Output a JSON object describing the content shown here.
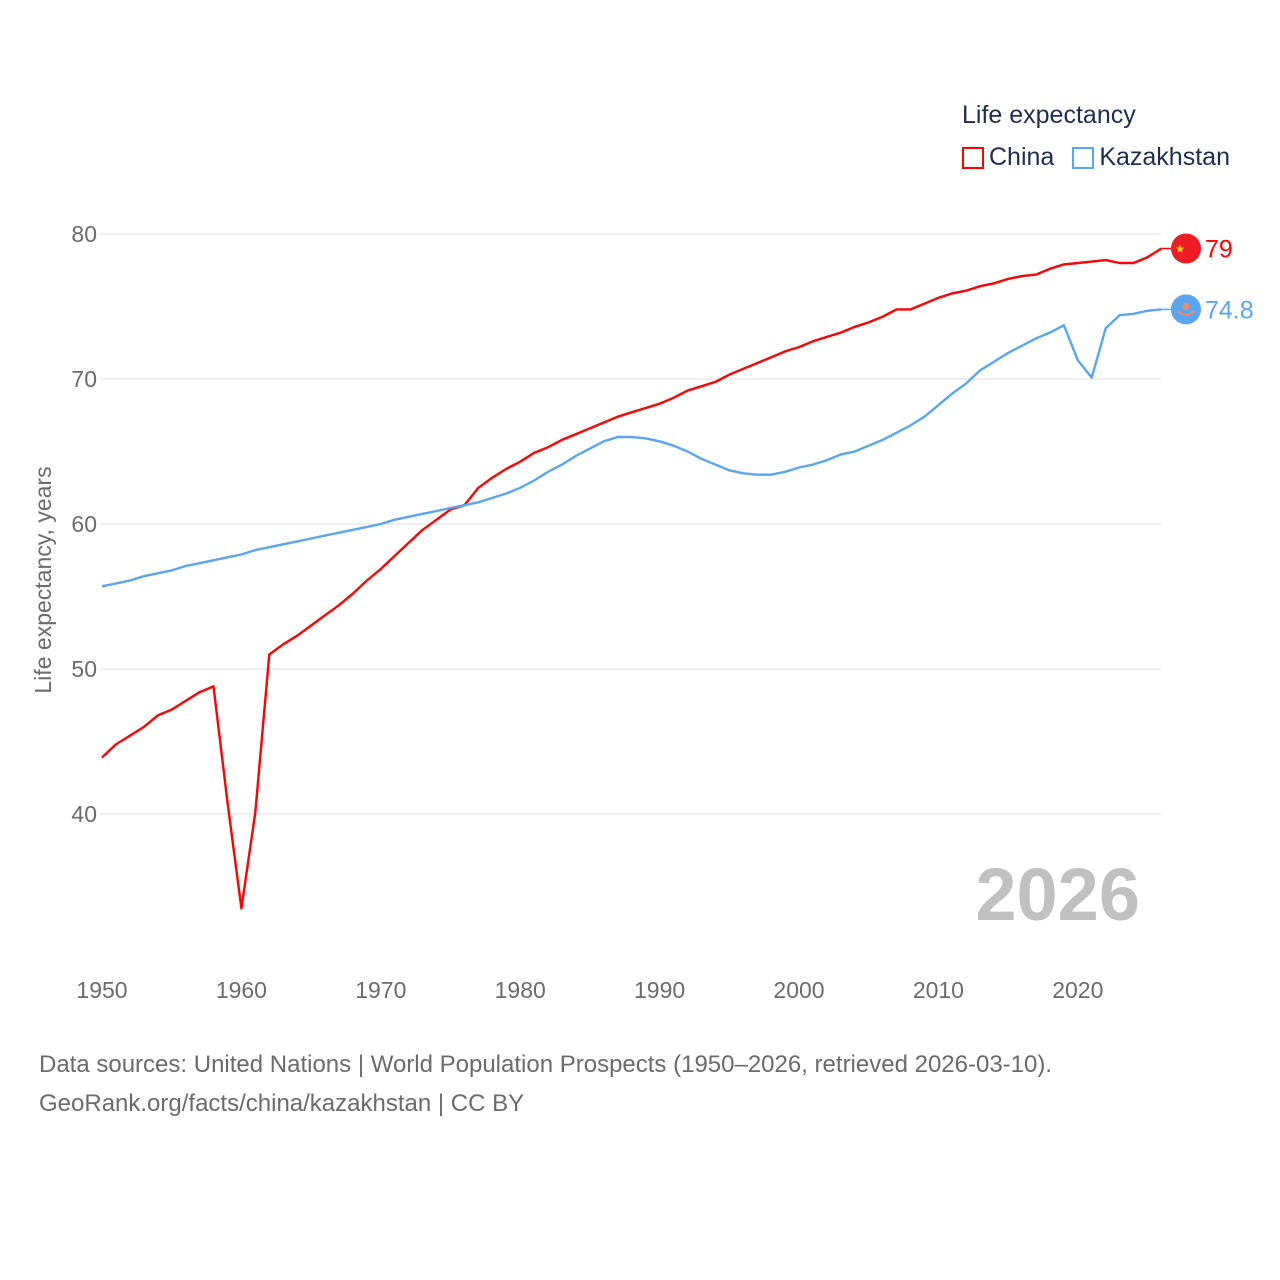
{
  "chart_data": {
    "type": "line",
    "title": "Life expectancy",
    "ylabel": "Life expectancy, years",
    "xlabel": "",
    "xlim": [
      1950,
      2026
    ],
    "ylim": [
      33,
      82
    ],
    "x_ticks": [
      1950,
      1960,
      1970,
      1980,
      1990,
      2000,
      2010,
      2020
    ],
    "y_ticks": [
      40,
      50,
      60,
      70,
      80
    ],
    "grid": true,
    "legend_position": "top-right",
    "year_watermark": "2026",
    "x_start": 1950,
    "series": [
      {
        "name": "China",
        "color": "#ff0000",
        "end_label": "79",
        "flag_icon": "china-flag-icon",
        "values": [
          43.9,
          44.8,
          45.4,
          46.0,
          46.8,
          47.2,
          47.8,
          48.4,
          48.8,
          40.8,
          33.5,
          40.1,
          51.0,
          51.7,
          52.3,
          53.0,
          53.7,
          54.4,
          55.2,
          56.1,
          56.9,
          57.8,
          58.7,
          59.6,
          60.3,
          61.0,
          61.3,
          62.5,
          63.2,
          63.8,
          64.3,
          64.9,
          65.3,
          65.8,
          66.2,
          66.6,
          67.0,
          67.4,
          67.7,
          68.0,
          68.3,
          68.7,
          69.2,
          69.5,
          69.8,
          70.3,
          70.7,
          71.1,
          71.5,
          71.9,
          72.2,
          72.6,
          72.9,
          73.2,
          73.6,
          73.9,
          74.3,
          74.8,
          74.8,
          75.2,
          75.6,
          75.9,
          76.1,
          76.4,
          76.6,
          76.9,
          77.1,
          77.2,
          77.6,
          77.9,
          78.0,
          78.1,
          78.2,
          78.0,
          78.0,
          78.4,
          79.0
        ]
      },
      {
        "name": "Kazakhstan",
        "color": "#5ba4f0",
        "end_label": "74.8",
        "flag_icon": "kazakhstan-flag-icon",
        "values": [
          55.7,
          55.9,
          56.1,
          56.4,
          56.6,
          56.8,
          57.1,
          57.3,
          57.5,
          57.7,
          57.9,
          58.2,
          58.4,
          58.6,
          58.8,
          59.0,
          59.2,
          59.4,
          59.6,
          59.8,
          60.0,
          60.3,
          60.5,
          60.7,
          60.9,
          61.1,
          61.3,
          61.5,
          61.8,
          62.1,
          62.5,
          63.0,
          63.6,
          64.1,
          64.7,
          65.2,
          65.7,
          66.0,
          66.0,
          65.9,
          65.7,
          65.4,
          65.0,
          64.5,
          64.1,
          63.7,
          63.5,
          63.4,
          63.4,
          63.6,
          63.9,
          64.1,
          64.4,
          64.8,
          65.0,
          65.4,
          65.8,
          66.3,
          66.8,
          67.4,
          68.2,
          69.0,
          69.7,
          70.6,
          71.2,
          71.8,
          72.3,
          72.8,
          73.2,
          73.7,
          71.3,
          70.1,
          73.5,
          74.4,
          74.5,
          74.7,
          74.8
        ]
      }
    ]
  },
  "footer": {
    "line1": "Data sources: United Nations | World Population Prospects (1950–2026, retrieved 2026-03-10).",
    "line2": "GeoRank.org/facts/china/kazakhstan | CC BY"
  }
}
